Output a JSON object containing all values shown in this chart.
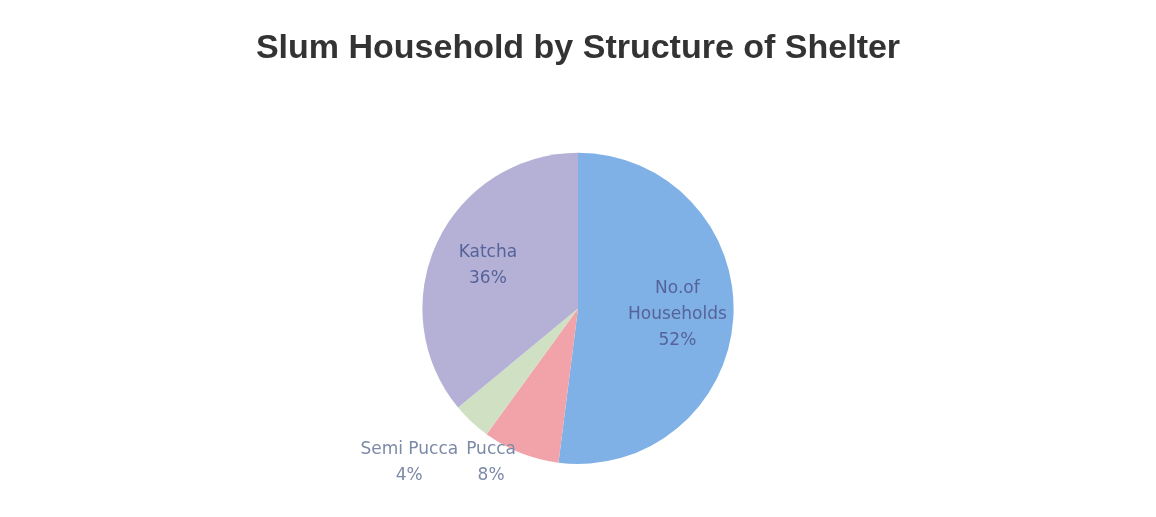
{
  "chart_data": {
    "type": "pie",
    "title": "Slum Household by Structure of Shelter",
    "categories": [
      "No.of Households",
      "Pucca",
      "Semi Pucca",
      "Katcha"
    ],
    "values": [
      52,
      8,
      4,
      36
    ],
    "value_labels": [
      "52%",
      "8%",
      "4%",
      "36%"
    ],
    "colors": [
      "#7fb1e6",
      "#f2a3aa",
      "#cfe1c2",
      "#b5b1d6"
    ],
    "legend": false
  }
}
